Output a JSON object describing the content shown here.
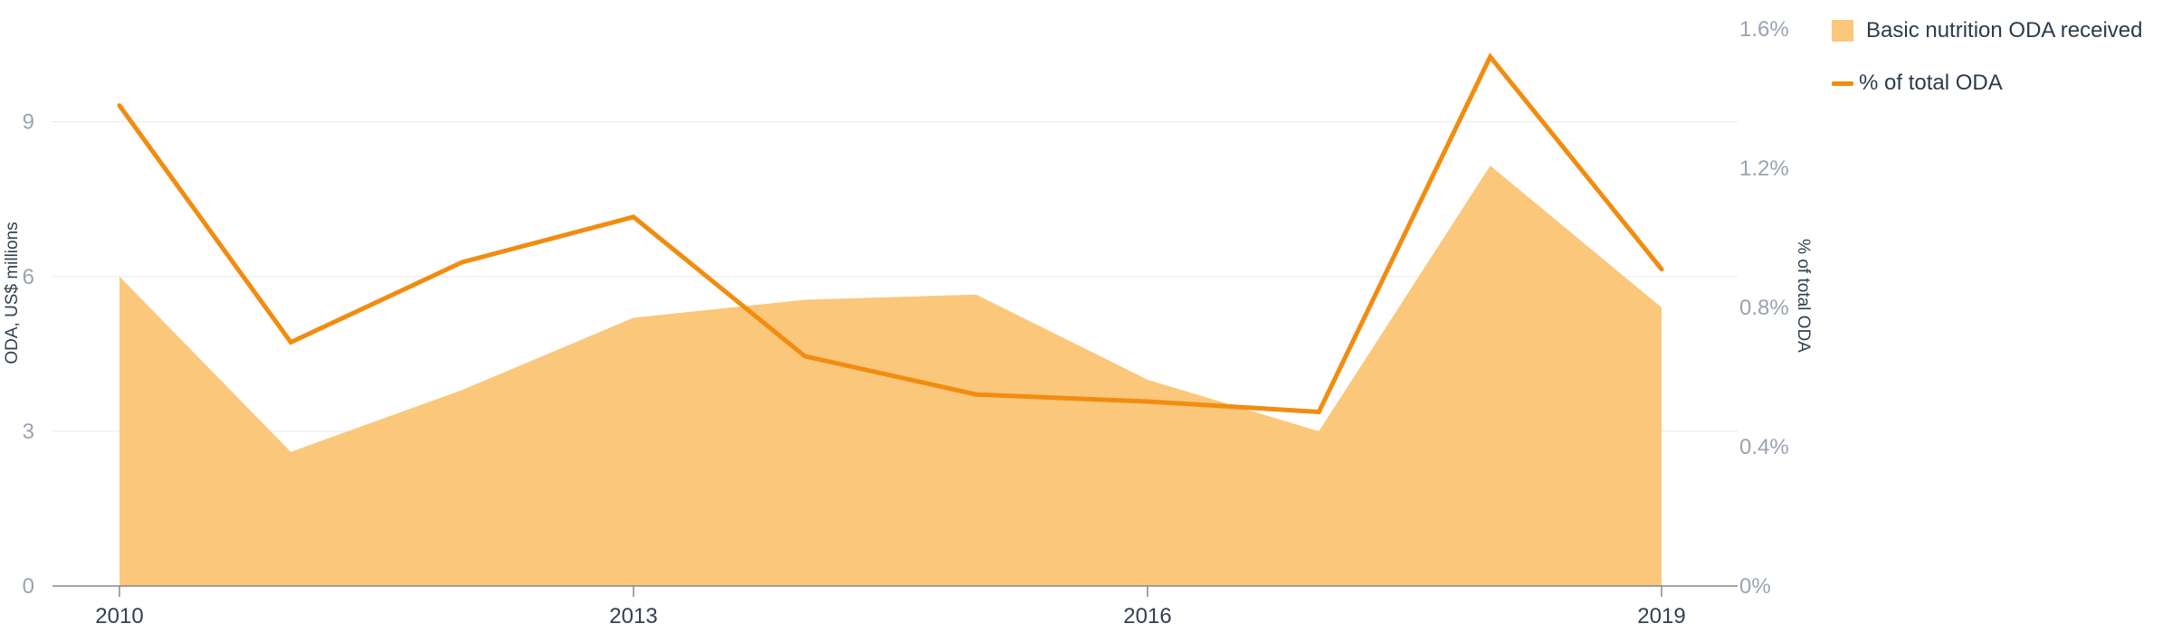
{
  "chart_data": {
    "type": "area",
    "x": [
      2010,
      2011,
      2012,
      2013,
      2014,
      2015,
      2016,
      2017,
      2018,
      2019
    ],
    "x_ticks": [
      "2010",
      "2013",
      "2016",
      "2019"
    ],
    "series": [
      {
        "name": "Basic nutrition ODA received",
        "type": "area",
        "axis": "left",
        "color": "#fbc77b",
        "values": [
          6.0,
          2.6,
          3.8,
          5.2,
          5.55,
          5.65,
          4.0,
          3.0,
          8.15,
          5.4
        ]
      },
      {
        "name": "% of total ODA",
        "type": "line",
        "axis": "right",
        "color": "#f28c0f",
        "values": [
          1.38,
          0.7,
          0.93,
          1.06,
          0.66,
          0.55,
          0.53,
          0.5,
          1.52,
          0.91
        ]
      }
    ],
    "ylabel_left": "ODA, US$ millions",
    "ylabel_right": "% of total ODA",
    "ylim_left": [
      0,
      10.8
    ],
    "yticks_left": [
      "0",
      "3",
      "6",
      "9"
    ],
    "ylim_right": [
      0,
      1.6
    ],
    "yticks_right": [
      "0%",
      "0.4%",
      "0.8%",
      "1.2%",
      "1.6%"
    ],
    "grid": true,
    "legend_position": "top-right"
  }
}
